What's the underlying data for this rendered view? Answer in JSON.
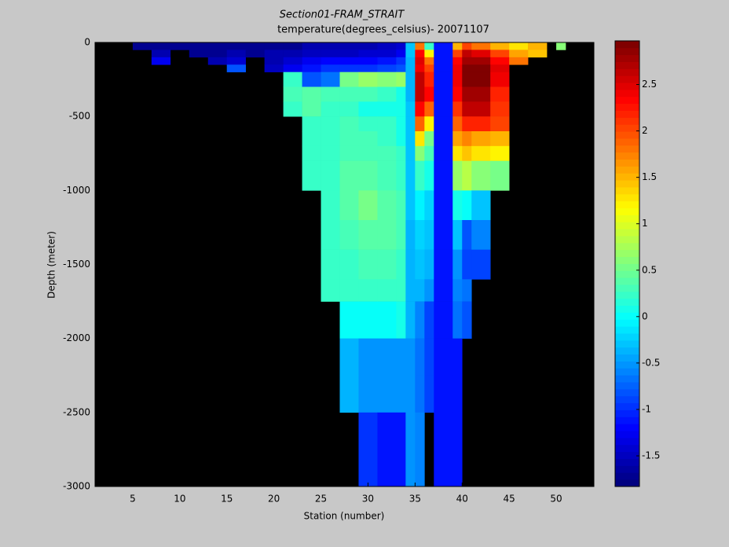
{
  "chart_data": {
    "type": "heatmap",
    "title": "Section01-FRAM_STRAIT",
    "subtitle": "temperature(degrees_celsius)- 20071107",
    "x_label": "Station (number)",
    "y_label": "Depth (meter)",
    "colormap": "jet",
    "clim": [
      -1.83,
      2.97
    ],
    "cticks": [
      -1.5,
      -1,
      -0.5,
      0,
      0.5,
      1,
      1.5,
      2,
      2.5
    ],
    "xlim": [
      1,
      54
    ],
    "xticks": [
      5,
      10,
      15,
      20,
      25,
      30,
      35,
      40,
      45,
      50
    ],
    "ylim": [
      -3000,
      0
    ],
    "yticks": [
      -3000,
      -2500,
      -2000,
      -1500,
      -1000,
      -500,
      0
    ],
    "x_edges": [
      5,
      7,
      9,
      11,
      13,
      15,
      17,
      19,
      21,
      23,
      25,
      27,
      29,
      31,
      33,
      34,
      35,
      36,
      37,
      39,
      40,
      41,
      43,
      45,
      47,
      49,
      50,
      51
    ],
    "y_edges": [
      0,
      -50,
      -100,
      -150,
      -200,
      -300,
      -400,
      -500,
      -600,
      -700,
      -800,
      -1000,
      -1200,
      -1400,
      -1600,
      -1750,
      -2000,
      -2250,
      -2500,
      -3000
    ],
    "z": [
      [
        -1.7,
        -1.7,
        -1.7,
        -1.7,
        -1.7,
        -1.7,
        -1.7,
        -1.7,
        -1.7,
        -1.6,
        -1.6,
        -1.6,
        -1.6,
        -1.5,
        -1.4,
        -0.3,
        1.8,
        0.2,
        -1.1,
        1.5,
        2.0,
        1.8,
        1.5,
        1.3,
        1.5,
        null,
        0.6
      ],
      [
        null,
        -1.6,
        null,
        -1.7,
        -1.7,
        -1.6,
        -1.7,
        -1.6,
        -1.6,
        -1.5,
        -1.5,
        -1.5,
        -1.4,
        -1.4,
        -1.3,
        -0.3,
        2.3,
        1.2,
        -1.1,
        2.0,
        2.6,
        2.5,
        2.0,
        1.6,
        1.4,
        null,
        null
      ],
      [
        null,
        -1.3,
        null,
        null,
        -1.6,
        -1.4,
        null,
        -1.6,
        -1.4,
        -1.3,
        -1.2,
        -1.2,
        -1.2,
        -1.1,
        -1.0,
        -0.4,
        2.5,
        1.8,
        -1.1,
        2.3,
        2.8,
        2.8,
        2.3,
        1.8,
        null,
        null,
        null
      ],
      [
        null,
        null,
        null,
        null,
        null,
        -0.8,
        null,
        -1.5,
        -1.3,
        -1.1,
        -1.0,
        -1.0,
        -1.0,
        -0.9,
        -0.8,
        -0.4,
        2.4,
        2.0,
        -1.1,
        2.4,
        2.9,
        2.9,
        2.5,
        null,
        null,
        null,
        null
      ],
      [
        null,
        null,
        null,
        null,
        null,
        null,
        null,
        null,
        0.2,
        -0.8,
        -0.7,
        0.5,
        0.7,
        0.6,
        0.7,
        -0.4,
        2.6,
        2.2,
        -1.1,
        2.4,
        2.9,
        2.9,
        2.4,
        null,
        null,
        null,
        null
      ],
      [
        null,
        null,
        null,
        null,
        null,
        null,
        null,
        null,
        0.3,
        0.4,
        0.3,
        0.3,
        0.3,
        0.2,
        0.1,
        -0.4,
        2.6,
        2.3,
        -1.1,
        2.3,
        2.8,
        2.8,
        2.2,
        null,
        null,
        null,
        null
      ],
      [
        null,
        null,
        null,
        null,
        null,
        null,
        null,
        null,
        0.2,
        0.4,
        0.2,
        0.2,
        0.1,
        0.1,
        0.1,
        -0.3,
        2.3,
        1.9,
        -1.1,
        2.1,
        2.6,
        2.6,
        2.1,
        null,
        null,
        null,
        null
      ],
      [
        null,
        null,
        null,
        null,
        null,
        null,
        null,
        null,
        null,
        0.2,
        0.2,
        0.3,
        0.2,
        0.2,
        0.1,
        -0.3,
        1.9,
        1.2,
        -1.1,
        1.9,
        2.2,
        2.2,
        2.0,
        null,
        null,
        null,
        null
      ],
      [
        null,
        null,
        null,
        null,
        null,
        null,
        null,
        null,
        null,
        0.2,
        0.2,
        0.3,
        0.3,
        0.2,
        0.1,
        -0.3,
        1.3,
        0.5,
        -1.1,
        1.6,
        1.7,
        1.6,
        1.5,
        null,
        null,
        null,
        null
      ],
      [
        null,
        null,
        null,
        null,
        null,
        null,
        null,
        null,
        null,
        0.2,
        0.2,
        0.3,
        0.3,
        0.3,
        0.2,
        -0.3,
        0.6,
        0.3,
        -1.1,
        1.3,
        1.4,
        1.3,
        1.2,
        null,
        null,
        null,
        null
      ],
      [
        null,
        null,
        null,
        null,
        null,
        null,
        null,
        null,
        null,
        0.2,
        0.2,
        0.4,
        0.4,
        0.3,
        0.2,
        -0.3,
        0.2,
        0.1,
        -1.1,
        0.7,
        0.8,
        0.6,
        0.5,
        null,
        null,
        null,
        null
      ],
      [
        null,
        null,
        null,
        null,
        null,
        null,
        null,
        null,
        null,
        null,
        0.2,
        0.4,
        0.5,
        0.4,
        0.3,
        -0.3,
        -0.1,
        -0.2,
        -1.1,
        0.1,
        0.0,
        -0.3,
        null,
        null,
        null,
        null,
        null
      ],
      [
        null,
        null,
        null,
        null,
        null,
        null,
        null,
        null,
        null,
        null,
        0.2,
        0.3,
        0.4,
        0.4,
        0.3,
        -0.4,
        -0.2,
        -0.3,
        -1.1,
        -0.3,
        -0.8,
        -0.6,
        null,
        null,
        null,
        null,
        null
      ],
      [
        null,
        null,
        null,
        null,
        null,
        null,
        null,
        null,
        null,
        null,
        0.2,
        0.2,
        0.3,
        0.3,
        0.2,
        -0.4,
        -0.3,
        -0.4,
        -1.1,
        -0.5,
        -0.9,
        -0.9,
        null,
        null,
        null,
        null,
        null
      ],
      [
        null,
        null,
        null,
        null,
        null,
        null,
        null,
        null,
        null,
        null,
        0.2,
        0.2,
        0.2,
        0.2,
        0.2,
        -0.4,
        -0.4,
        -0.5,
        -1.1,
        -0.6,
        -0.7,
        null,
        null,
        null,
        null,
        null,
        null
      ],
      [
        null,
        null,
        null,
        null,
        null,
        null,
        null,
        null,
        null,
        null,
        null,
        0.0,
        0.0,
        0.0,
        0.1,
        -0.4,
        -0.6,
        -0.9,
        -1.1,
        -0.7,
        -0.8,
        null,
        null,
        null,
        null,
        null,
        null
      ],
      [
        null,
        null,
        null,
        null,
        null,
        null,
        null,
        null,
        null,
        null,
        null,
        -0.4,
        -0.5,
        -0.5,
        -0.5,
        -0.5,
        -0.7,
        -0.9,
        -1.1,
        -1.1,
        null,
        null,
        null,
        null,
        null,
        null,
        null
      ],
      [
        null,
        null,
        null,
        null,
        null,
        null,
        null,
        null,
        null,
        null,
        null,
        -0.4,
        -0.5,
        -0.5,
        -0.5,
        -0.5,
        -0.7,
        -0.9,
        -1.1,
        -1.1,
        null,
        null,
        null,
        null,
        null,
        null,
        null
      ],
      [
        null,
        null,
        null,
        null,
        null,
        null,
        null,
        null,
        null,
        null,
        null,
        null,
        -1.0,
        -1.1,
        -1.1,
        -0.5,
        -0.6,
        null,
        -1.1,
        -1.1,
        null,
        null,
        null,
        null,
        null,
        null,
        null
      ]
    ]
  }
}
